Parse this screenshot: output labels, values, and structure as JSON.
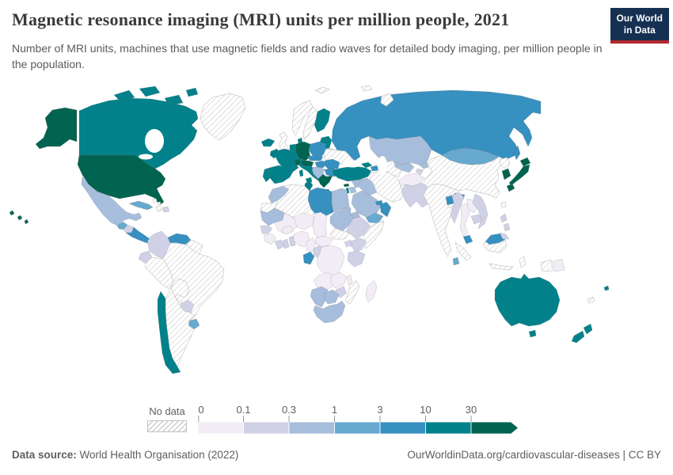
{
  "header": {
    "title": "Magnetic resonance imaging (MRI) units per million people, 2021",
    "subtitle": "Number of MRI units, machines that use magnetic fields and radio waves for detailed body imaging, per million people in the population.",
    "logo": {
      "line1": "Our World",
      "line2": "in Data",
      "bg": "#163052",
      "accent": "#b5292e"
    }
  },
  "legend": {
    "no_data_label": "No data",
    "ticks": [
      "0",
      "0.1",
      "0.3",
      "1",
      "3",
      "10",
      "30"
    ],
    "colors": [
      "#f1ecf5",
      "#d0d1e6",
      "#a6bddb",
      "#67a9cf",
      "#3690c0",
      "#02818a",
      "#016450"
    ],
    "tick_color": "#999999",
    "label_color": "#5f5f5f"
  },
  "footer": {
    "source_label": "Data source:",
    "source_text": "World Health Organisation (2022)",
    "credit_text": "OurWorldinData.org/cardiovascular-diseases | CC BY"
  },
  "chart_data": {
    "type": "choropleth",
    "title": "Magnetic resonance imaging (MRI) units per million people",
    "year": 2021,
    "unit": "MRI units per million people",
    "scale": "log-binned",
    "bin_edges": [
      0,
      0.1,
      0.3,
      1,
      3,
      10,
      30
    ],
    "bin_labels": [
      "0-0.1",
      "0.1-0.3",
      "0.3-1",
      "1-3",
      "3-10",
      "10-30",
      "30+"
    ],
    "bin_colors": [
      "#f1ecf5",
      "#d0d1e6",
      "#a6bddb",
      "#67a9cf",
      "#3690c0",
      "#02818a",
      "#016450"
    ],
    "no_data_label": "No data",
    "countries": {
      "United States": 6,
      "Canada": 5,
      "Greenland": "no_data",
      "Mexico": 2,
      "Guatemala & Belize": 3,
      "Honduras": 1,
      "Nicaragua, Costa Rica & Panama": 4,
      "Cuba": 3,
      "Haiti": "no_data",
      "Dominican Republic": 1,
      "Bahamas": "no_data",
      "Colombia": 1,
      "Venezuela": 4,
      "Guyana & Suriname": "no_data",
      "Ecuador": 1,
      "Peru": "no_data",
      "Brazil": "no_data",
      "Bolivia": "no_data",
      "Paraguay": 1,
      "Uruguay": 3,
      "Argentina": "no_data",
      "Chile": 5,
      "Iceland": 5,
      "Ireland": 5,
      "United Kingdom": "no_data",
      "Norway": "no_data",
      "Sweden": "no_data",
      "Finland": 5,
      "Denmark": 5,
      "Baltic States": 5,
      "Belarus": 1,
      "Poland": 4,
      "Germany": 6,
      "Netherlands & Belgium": 5,
      "France": 5,
      "Spain": 5,
      "Portugal": 5,
      "Italy": 5,
      "Switzerland": 6,
      "Austria": 6,
      "Czechia & Slovakia": 4,
      "Hungary": 4,
      "Ukraine": "no_data",
      "Romania": 4,
      "Bulgaria": 4,
      "Serbia & Western Balkans": 2,
      "Greece": 6,
      "Arctic Islands": "no_data",
      "Russia": 4,
      "Kazakhstan": 2,
      "Uzbekistan": 2,
      "Turkmenistan": "no_data",
      "Kyrgyzstan": 2,
      "Tajikistan": 1,
      "Georgia": 5,
      "Azerbaijan": 4,
      "Turkey": 5,
      "Cyprus": 6,
      "Syria": 2,
      "Iraq": 2,
      "Iran": "no_data",
      "Israel": 5,
      "Jordan": 2,
      "Saudi Arabia": 2,
      "Yemen": 3,
      "Oman": 4,
      "United Arab Emirates": 4,
      "Afghanistan": 0,
      "Pakistan": 1,
      "India": "no_data",
      "Nepal": 4,
      "Bangladesh": 4,
      "Sri Lanka": 3,
      "Myanmar": 1,
      "Thailand": 0,
      "Laos": 0,
      "Vietnam": 1,
      "Cambodia": 1,
      "Malaysia": 4,
      "Indonesia": "no_data",
      "Philippines": 1,
      "China": "no_data",
      "Mongolia": 3,
      "North Korea": "no_data",
      "South Korea": 6,
      "Japan": 6,
      "Taiwan": "no_data",
      "Papua New Guinea": 0,
      "Australia": 5,
      "New Zealand": 5,
      "Fiji": 5,
      "New Caledonia": "no_data",
      "Morocco": 2,
      "Western Sahara": "no_data",
      "Algeria": "no_data",
      "Tunisia": 5,
      "Libya": 4,
      "Egypt": 2,
      "Mauritania": 2,
      "Mali": 0,
      "Burkina Faso": 0,
      "Niger": 0,
      "Chad": 0,
      "Sudan": 2,
      "South Sudan": "no_data",
      "Eritrea": 2,
      "Ethiopia": 1,
      "Somalia": "no_data",
      "Senegal": 1,
      "Guinea": 0,
      "Ivory Coast": 1,
      "Ghana": 1,
      "Togo & Benin": 1,
      "Nigeria": 0,
      "Cameroon": 0,
      "Central African Republic": 0,
      "Gabon": 4,
      "Congo": 1,
      "DR Congo": 0,
      "Uganda": 1,
      "Kenya": 1,
      "Tanzania": 1,
      "Angola": 0,
      "Zambia": 0,
      "Malawi": 0,
      "Mozambique": "no_data",
      "Zimbabwe": 1,
      "Namibia": 2,
      "Botswana": 2,
      "South Africa": 2,
      "Madagascar": 0
    }
  }
}
